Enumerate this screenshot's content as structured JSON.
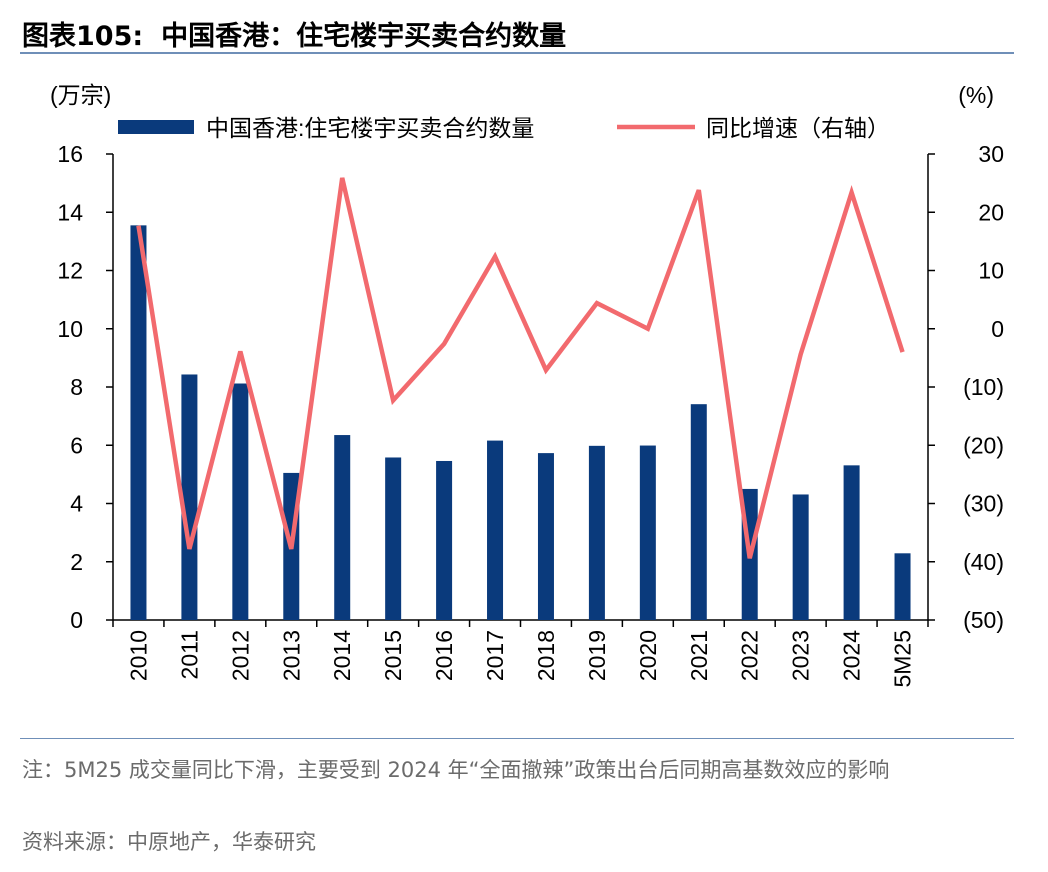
{
  "header": {
    "figure_label": "图表105:",
    "title": "中国香港：住宅楼宇买卖合约数量"
  },
  "footer": {
    "note": "注：5M25 成交量同比下滑，主要受到 2024 年“全面撤辣”政策出台后同期高基数效应的影响",
    "source": "资料来源：中原地产，华泰研究"
  },
  "chart_data": {
    "type": "bar",
    "categories": [
      "2010",
      "2011",
      "2012",
      "2013",
      "2014",
      "2015",
      "2016",
      "2017",
      "2018",
      "2019",
      "2020",
      "2021",
      "2022",
      "2023",
      "2024",
      "5M25"
    ],
    "y_left": {
      "unit_label": "(万宗)",
      "range": [
        0,
        16
      ],
      "ticks": [
        "0",
        "2",
        "4",
        "6",
        "8",
        "10",
        "12",
        "14",
        "16"
      ]
    },
    "y_right": {
      "unit_label": "(%)",
      "range": [
        -50,
        30
      ],
      "ticks": [
        "(50)",
        "(40)",
        "(30)",
        "(20)",
        "(10)",
        "0",
        "10",
        "20",
        "30"
      ]
    },
    "colors": {
      "bar": "#0a3a7c",
      "line": "#f26a6e"
    },
    "legend_position": "top",
    "series": [
      {
        "name": "中国香港:住宅楼宇买卖合约数量",
        "type": "bar",
        "axis": "left",
        "values": [
          13.55,
          8.43,
          8.12,
          5.05,
          6.35,
          5.58,
          5.46,
          6.16,
          5.73,
          5.98,
          5.99,
          7.41,
          4.5,
          4.31,
          5.31,
          2.29
        ]
      },
      {
        "name": "同比增速（右轴）",
        "type": "line",
        "axis": "right",
        "values": [
          17.7,
          -37.8,
          -3.9,
          -37.8,
          25.9,
          -12.3,
          -2.6,
          12.4,
          -7.1,
          4.4,
          0.0,
          23.8,
          -39.4,
          -4.4,
          23.4,
          -4.0
        ]
      }
    ]
  }
}
